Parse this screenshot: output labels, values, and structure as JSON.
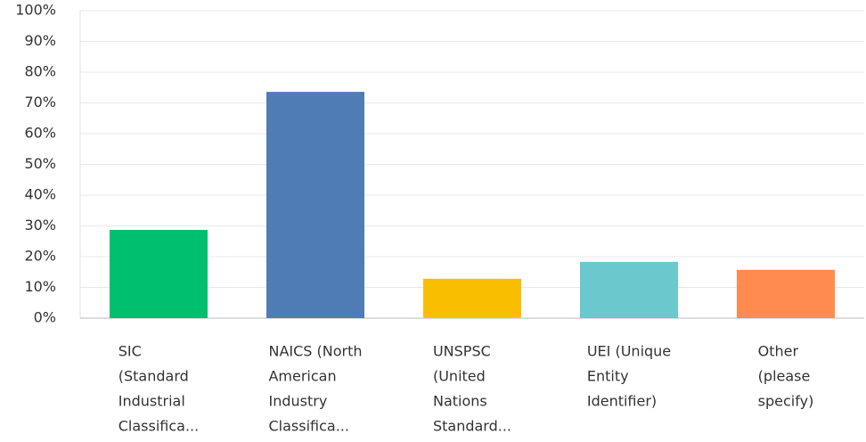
{
  "chart_data": {
    "type": "bar",
    "categories": [
      [
        "SIC",
        "(Standard",
        "Industrial",
        "Classifica..."
      ],
      [
        "NAICS (North",
        "American",
        "Industry",
        "Classifica..."
      ],
      [
        "UNSPSC",
        "(United",
        "Nations",
        "Standard..."
      ],
      [
        "UEI (Unique",
        "Entity",
        "Identifier)"
      ],
      [
        "Other",
        "(please",
        "specify)"
      ]
    ],
    "series": [
      {
        "values": [
          28.7,
          73.6,
          12.8,
          18.3,
          15.7
        ],
        "colors": [
          "#00bf6f",
          "#507cb6",
          "#f9be00",
          "#6bc8cd",
          "#ff8b4f"
        ]
      }
    ],
    "ylim": [
      0,
      100
    ],
    "yticks": [
      {
        "value": 0,
        "label": "0%"
      },
      {
        "value": 10,
        "label": "10%"
      },
      {
        "value": 20,
        "label": "20%"
      },
      {
        "value": 30,
        "label": "30%"
      },
      {
        "value": 40,
        "label": "40%"
      },
      {
        "value": 50,
        "label": "50%"
      },
      {
        "value": 60,
        "label": "60%"
      },
      {
        "value": 70,
        "label": "70%"
      },
      {
        "value": 80,
        "label": "80%"
      },
      {
        "value": 90,
        "label": "90%"
      },
      {
        "value": 100,
        "label": "100%"
      }
    ],
    "grid": true
  }
}
